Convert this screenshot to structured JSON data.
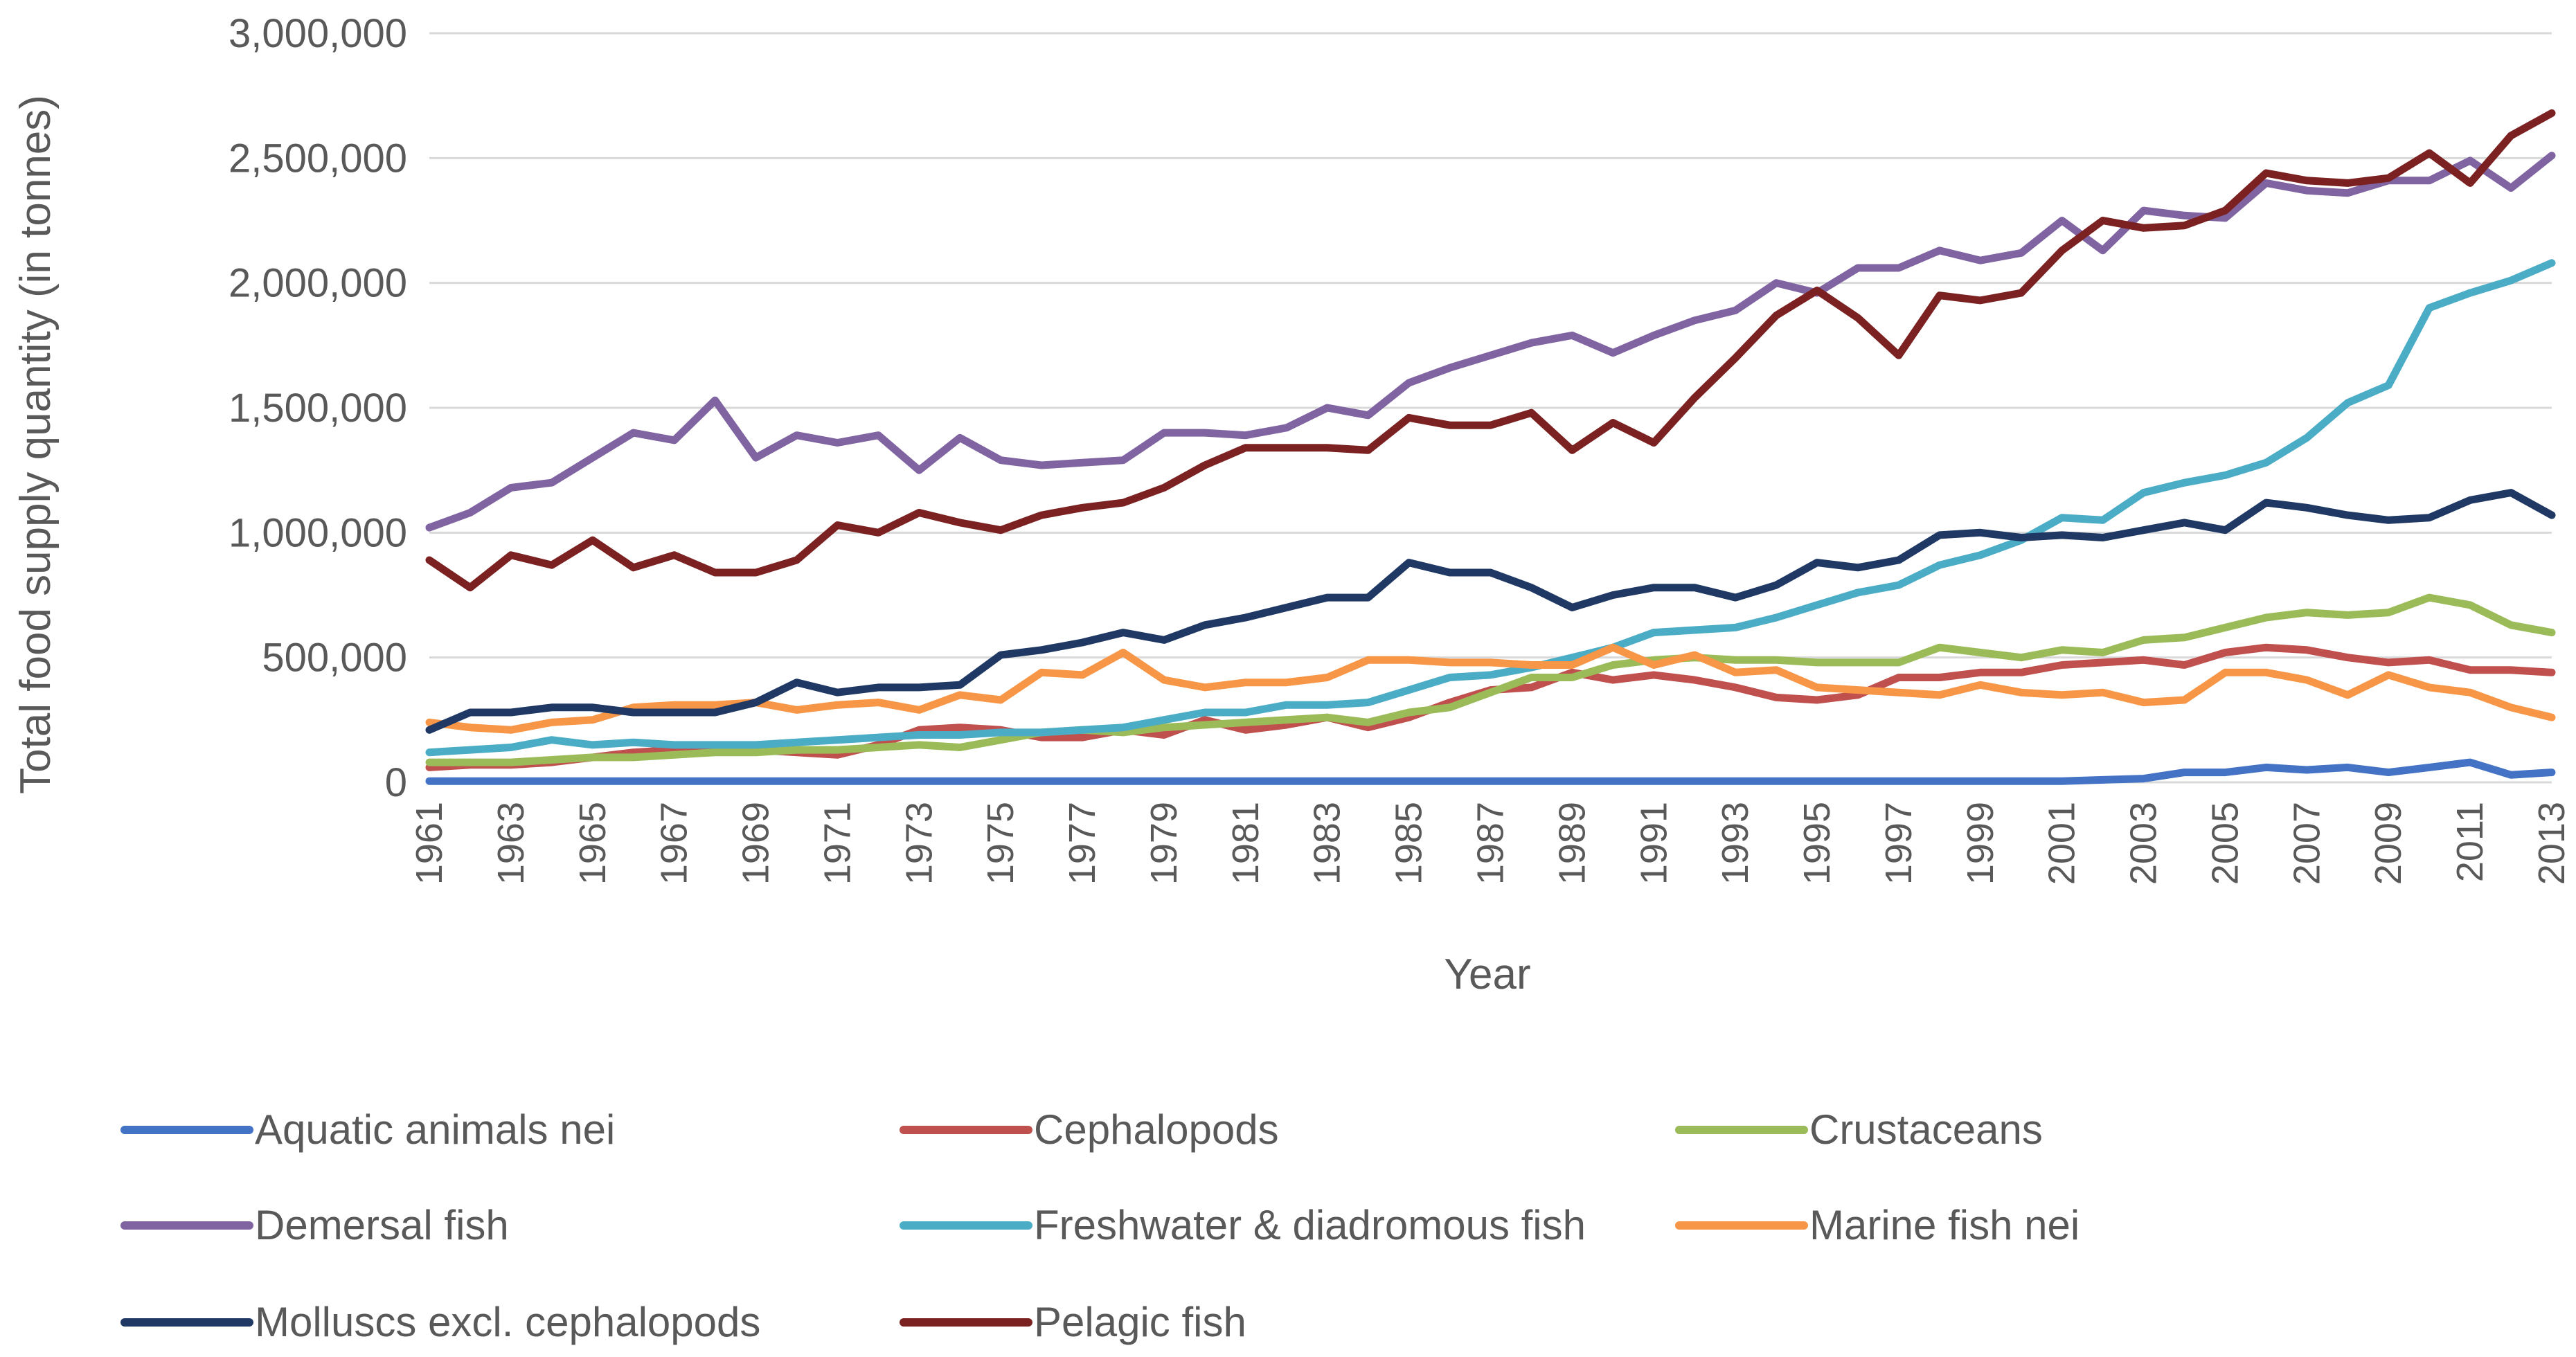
{
  "chart_data": {
    "type": "line",
    "title": "",
    "xlabel": "Year",
    "ylabel": "Total food supply quantity (in tonnes)",
    "ylim": [
      0,
      3000000
    ],
    "yticks": [
      0,
      500000,
      1000000,
      1500000,
      2000000,
      2500000,
      3000000
    ],
    "ytick_labels": [
      "0",
      "500,000",
      "1,000,000",
      "1,500,000",
      "2,000,000",
      "2,500,000",
      "3,000,000"
    ],
    "x": [
      1961,
      1962,
      1963,
      1964,
      1965,
      1966,
      1967,
      1968,
      1969,
      1970,
      1971,
      1972,
      1973,
      1974,
      1975,
      1976,
      1977,
      1978,
      1979,
      1980,
      1981,
      1982,
      1983,
      1984,
      1985,
      1986,
      1987,
      1988,
      1989,
      1990,
      1991,
      1992,
      1993,
      1994,
      1995,
      1996,
      1997,
      1998,
      1999,
      2000,
      2001,
      2002,
      2003,
      2004,
      2005,
      2006,
      2007,
      2008,
      2009,
      2010,
      2011,
      2012,
      2013
    ],
    "xtick_labels": [
      "1961",
      "1963",
      "1965",
      "1967",
      "1969",
      "1971",
      "1973",
      "1975",
      "1977",
      "1979",
      "1981",
      "1983",
      "1985",
      "1987",
      "1989",
      "1991",
      "1993",
      "1995",
      "1997",
      "1999",
      "2001",
      "2003",
      "2005",
      "2007",
      "2009",
      "2011",
      "2013"
    ],
    "grid": true,
    "legend_position": "bottom",
    "series": [
      {
        "name": "Aquatic animals nei",
        "color": "#4472c4",
        "values": [
          5000,
          5000,
          5000,
          5000,
          5000,
          5000,
          5000,
          5000,
          5000,
          5000,
          5000,
          5000,
          5000,
          5000,
          5000,
          5000,
          5000,
          5000,
          5000,
          5000,
          5000,
          5000,
          5000,
          5000,
          5000,
          5000,
          5000,
          5000,
          5000,
          5000,
          5000,
          5000,
          5000,
          5000,
          5000,
          5000,
          5000,
          5000,
          5000,
          5000,
          5000,
          10000,
          15000,
          40000,
          40000,
          60000,
          50000,
          60000,
          40000,
          60000,
          80000,
          30000,
          40000
        ]
      },
      {
        "name": "Cephalopods",
        "color": "#c0504d",
        "values": [
          60000,
          70000,
          70000,
          80000,
          100000,
          120000,
          130000,
          140000,
          130000,
          120000,
          110000,
          150000,
          210000,
          220000,
          210000,
          180000,
          180000,
          210000,
          190000,
          250000,
          210000,
          230000,
          260000,
          220000,
          260000,
          320000,
          370000,
          380000,
          440000,
          410000,
          430000,
          410000,
          380000,
          340000,
          330000,
          350000,
          420000,
          420000,
          440000,
          440000,
          470000,
          480000,
          490000,
          470000,
          520000,
          540000,
          530000,
          500000,
          480000,
          490000,
          450000,
          450000,
          440000
        ]
      },
      {
        "name": "Crustaceans",
        "color": "#9bbb59",
        "values": [
          80000,
          80000,
          80000,
          90000,
          100000,
          100000,
          110000,
          120000,
          120000,
          130000,
          130000,
          140000,
          150000,
          140000,
          170000,
          200000,
          210000,
          200000,
          220000,
          230000,
          240000,
          250000,
          260000,
          240000,
          280000,
          300000,
          360000,
          420000,
          420000,
          470000,
          490000,
          500000,
          490000,
          490000,
          480000,
          480000,
          480000,
          540000,
          520000,
          500000,
          530000,
          520000,
          570000,
          580000,
          620000,
          660000,
          680000,
          670000,
          680000,
          740000,
          710000,
          630000,
          600000
        ]
      },
      {
        "name": "Demersal fish",
        "color": "#8064a2",
        "values": [
          1020000,
          1080000,
          1180000,
          1200000,
          1300000,
          1400000,
          1370000,
          1530000,
          1300000,
          1390000,
          1360000,
          1390000,
          1250000,
          1380000,
          1290000,
          1270000,
          1280000,
          1290000,
          1400000,
          1400000,
          1390000,
          1420000,
          1500000,
          1470000,
          1600000,
          1660000,
          1710000,
          1760000,
          1790000,
          1720000,
          1790000,
          1850000,
          1890000,
          2000000,
          1960000,
          2060000,
          2060000,
          2130000,
          2090000,
          2120000,
          2250000,
          2130000,
          2290000,
          2270000,
          2260000,
          2400000,
          2370000,
          2360000,
          2410000,
          2410000,
          2490000,
          2380000,
          2510000
        ]
      },
      {
        "name": "Freshwater & diadromous fish",
        "color": "#4bacc6",
        "values": [
          120000,
          130000,
          140000,
          170000,
          150000,
          160000,
          150000,
          150000,
          150000,
          160000,
          170000,
          180000,
          190000,
          190000,
          200000,
          200000,
          210000,
          220000,
          250000,
          280000,
          280000,
          310000,
          310000,
          320000,
          370000,
          420000,
          430000,
          460000,
          500000,
          540000,
          600000,
          610000,
          620000,
          660000,
          710000,
          760000,
          790000,
          870000,
          910000,
          970000,
          1060000,
          1050000,
          1160000,
          1200000,
          1230000,
          1280000,
          1380000,
          1520000,
          1590000,
          1900000,
          1960000,
          2010000,
          2080000
        ]
      },
      {
        "name": "Marine fish nei",
        "color": "#f79646",
        "values": [
          240000,
          220000,
          210000,
          240000,
          250000,
          300000,
          310000,
          310000,
          320000,
          290000,
          310000,
          320000,
          290000,
          350000,
          330000,
          440000,
          430000,
          520000,
          410000,
          380000,
          400000,
          400000,
          420000,
          490000,
          490000,
          480000,
          480000,
          470000,
          470000,
          540000,
          470000,
          510000,
          440000,
          450000,
          380000,
          370000,
          360000,
          350000,
          390000,
          360000,
          350000,
          360000,
          320000,
          330000,
          440000,
          440000,
          410000,
          350000,
          430000,
          380000,
          360000,
          300000,
          260000
        ]
      },
      {
        "name": "Molluscs excl. cephalopods",
        "color": "#1f3864",
        "values": [
          210000,
          280000,
          280000,
          300000,
          300000,
          280000,
          280000,
          280000,
          320000,
          400000,
          360000,
          380000,
          380000,
          390000,
          510000,
          530000,
          560000,
          600000,
          570000,
          630000,
          660000,
          700000,
          740000,
          740000,
          880000,
          840000,
          840000,
          780000,
          700000,
          750000,
          780000,
          780000,
          740000,
          790000,
          880000,
          860000,
          890000,
          990000,
          1000000,
          980000,
          990000,
          980000,
          1010000,
          1040000,
          1010000,
          1120000,
          1100000,
          1070000,
          1050000,
          1060000,
          1130000,
          1160000,
          1070000
        ]
      },
      {
        "name": "Pelagic fish",
        "color": "#7b2121",
        "values": [
          890000,
          780000,
          910000,
          870000,
          970000,
          860000,
          910000,
          840000,
          840000,
          890000,
          1030000,
          1000000,
          1080000,
          1040000,
          1010000,
          1070000,
          1100000,
          1120000,
          1180000,
          1270000,
          1340000,
          1340000,
          1340000,
          1330000,
          1460000,
          1430000,
          1430000,
          1480000,
          1330000,
          1440000,
          1360000,
          1540000,
          1700000,
          1870000,
          1970000,
          1860000,
          1710000,
          1950000,
          1930000,
          1960000,
          2130000,
          2250000,
          2220000,
          2230000,
          2290000,
          2440000,
          2410000,
          2400000,
          2420000,
          2520000,
          2400000,
          2590000,
          2680000
        ]
      }
    ]
  }
}
